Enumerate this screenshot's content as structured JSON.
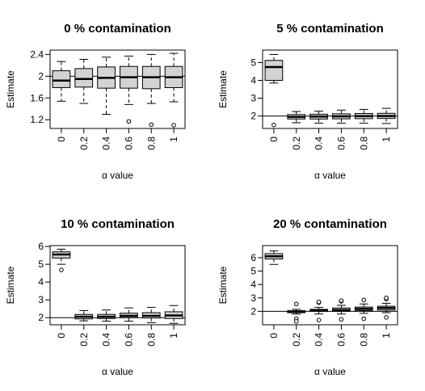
{
  "chart_data": [
    {
      "type": "boxplot",
      "title": "0 % contamination",
      "xlabel": "α value",
      "ylabel": "Estimate",
      "categories": [
        "0",
        "0.2",
        "0.4",
        "0.6",
        "0.8",
        "1"
      ],
      "yticks": [
        1.2,
        1.6,
        2.0,
        2.4
      ],
      "ylim": [
        1.04,
        2.48
      ],
      "reference_line": 2.0,
      "boxes": [
        {
          "min": 1.54,
          "q1": 1.79,
          "median": 1.92,
          "q3": 2.1,
          "max": 2.27,
          "outliers": []
        },
        {
          "min": 1.5,
          "q1": 1.8,
          "median": 1.95,
          "q3": 2.14,
          "max": 2.31,
          "outliers": []
        },
        {
          "min": 1.3,
          "q1": 1.78,
          "median": 1.97,
          "q3": 2.17,
          "max": 2.35,
          "outliers": []
        },
        {
          "min": 1.48,
          "q1": 1.78,
          "median": 1.98,
          "q3": 2.18,
          "max": 2.37,
          "outliers": [
            1.17
          ]
        },
        {
          "min": 1.5,
          "q1": 1.77,
          "median": 1.98,
          "q3": 2.18,
          "max": 2.4,
          "outliers": [
            1.11
          ]
        },
        {
          "min": 1.53,
          "q1": 1.79,
          "median": 1.98,
          "q3": 2.18,
          "max": 2.42,
          "outliers": [
            1.1
          ]
        }
      ]
    },
    {
      "type": "boxplot",
      "title": "5 % contamination",
      "xlabel": "α value",
      "ylabel": "Estimate",
      "categories": [
        "0",
        "0.2",
        "0.4",
        "0.6",
        "0.8",
        "1"
      ],
      "yticks": [
        2,
        3,
        4,
        5
      ],
      "ylim": [
        1.3,
        5.7
      ],
      "reference_line": 2.0,
      "boxes": [
        {
          "min": 3.85,
          "q1": 4.0,
          "median": 4.75,
          "q3": 5.12,
          "max": 5.45,
          "outliers": [
            1.5
          ]
        },
        {
          "min": 1.62,
          "q1": 1.83,
          "median": 1.95,
          "q3": 2.08,
          "max": 2.25,
          "outliers": []
        },
        {
          "min": 1.6,
          "q1": 1.83,
          "median": 1.97,
          "q3": 2.1,
          "max": 2.27,
          "outliers": []
        },
        {
          "min": 1.6,
          "q1": 1.84,
          "median": 1.98,
          "q3": 2.12,
          "max": 2.33,
          "outliers": []
        },
        {
          "min": 1.6,
          "q1": 1.85,
          "median": 1.99,
          "q3": 2.14,
          "max": 2.37,
          "outliers": []
        },
        {
          "min": 1.58,
          "q1": 1.86,
          "median": 2.0,
          "q3": 2.15,
          "max": 2.43,
          "outliers": []
        }
      ]
    },
    {
      "type": "boxplot",
      "title": "10 % contamination",
      "xlabel": "α value",
      "ylabel": "Estimate",
      "categories": [
        "0",
        "0.2",
        "0.4",
        "0.6",
        "0.8",
        "1"
      ],
      "yticks": [
        2,
        3,
        4,
        5,
        6
      ],
      "ylim": [
        1.6,
        6.05
      ],
      "reference_line": 2.0,
      "boxes": [
        {
          "min": 5.0,
          "q1": 5.35,
          "median": 5.55,
          "q3": 5.7,
          "max": 5.85,
          "outliers": [
            4.68
          ]
        },
        {
          "min": 1.82,
          "q1": 1.93,
          "median": 2.05,
          "q3": 2.18,
          "max": 2.4,
          "outliers": []
        },
        {
          "min": 1.8,
          "q1": 1.95,
          "median": 2.05,
          "q3": 2.18,
          "max": 2.43,
          "outliers": []
        },
        {
          "min": 1.8,
          "q1": 2.0,
          "median": 2.1,
          "q3": 2.25,
          "max": 2.55,
          "outliers": []
        },
        {
          "min": 1.72,
          "q1": 1.98,
          "median": 2.1,
          "q3": 2.28,
          "max": 2.58,
          "outliers": []
        },
        {
          "min": 1.68,
          "q1": 1.95,
          "median": 2.12,
          "q3": 2.33,
          "max": 2.68,
          "outliers": []
        }
      ]
    },
    {
      "type": "boxplot",
      "title": "20 % contamination",
      "xlabel": "α value",
      "ylabel": "Estimate",
      "categories": [
        "0",
        "0.2",
        "0.4",
        "0.6",
        "0.8",
        "1"
      ],
      "yticks": [
        2,
        3,
        4,
        5,
        6
      ],
      "ylim": [
        1.0,
        6.9
      ],
      "reference_line": 2.0,
      "boxes": [
        {
          "min": 5.5,
          "q1": 5.9,
          "median": 6.1,
          "q3": 6.3,
          "max": 6.5,
          "outliers": []
        },
        {
          "min": 1.8,
          "q1": 1.9,
          "median": 1.97,
          "q3": 2.05,
          "max": 2.15,
          "outliers": [
            2.55,
            1.45,
            1.25
          ]
        },
        {
          "min": 1.8,
          "q1": 2.0,
          "median": 2.07,
          "q3": 2.15,
          "max": 2.3,
          "outliers": [
            2.65,
            2.7,
            1.35
          ]
        },
        {
          "min": 1.8,
          "q1": 2.0,
          "median": 2.1,
          "q3": 2.25,
          "max": 2.45,
          "outliers": [
            2.75,
            2.8,
            1.4
          ]
        },
        {
          "min": 1.85,
          "q1": 2.05,
          "median": 2.18,
          "q3": 2.32,
          "max": 2.55,
          "outliers": [
            2.85,
            1.45
          ]
        },
        {
          "min": 1.9,
          "q1": 2.1,
          "median": 2.25,
          "q3": 2.38,
          "max": 2.6,
          "outliers": [
            2.9,
            3.0,
            1.55
          ]
        }
      ]
    }
  ]
}
